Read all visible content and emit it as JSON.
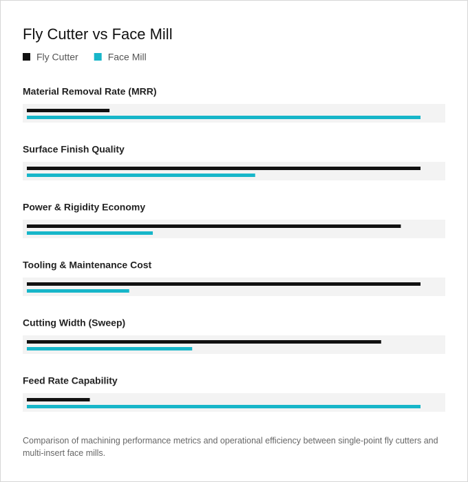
{
  "chart_data": {
    "type": "bar",
    "orientation": "horizontal",
    "title": "Fly Cutter vs Face Mill",
    "categories": [
      "Material Removal Rate (MRR)",
      "Surface Finish Quality",
      "Power & Rigidity Economy",
      "Tooling & Maintenance Cost",
      "Cutting Width (Sweep)",
      "Feed Rate Capability"
    ],
    "series": [
      {
        "name": "Fly Cutter",
        "color": "#111111",
        "values": [
          21,
          100,
          95,
          100,
          90,
          16
        ]
      },
      {
        "name": "Face Mill",
        "color": "#17b6c9",
        "values": [
          100,
          58,
          32,
          26,
          42,
          100
        ]
      }
    ],
    "xlim": [
      0,
      100
    ],
    "caption": "Comparison of machining performance metrics and operational efficiency between single-point fly cutters and multi-insert face mills."
  }
}
